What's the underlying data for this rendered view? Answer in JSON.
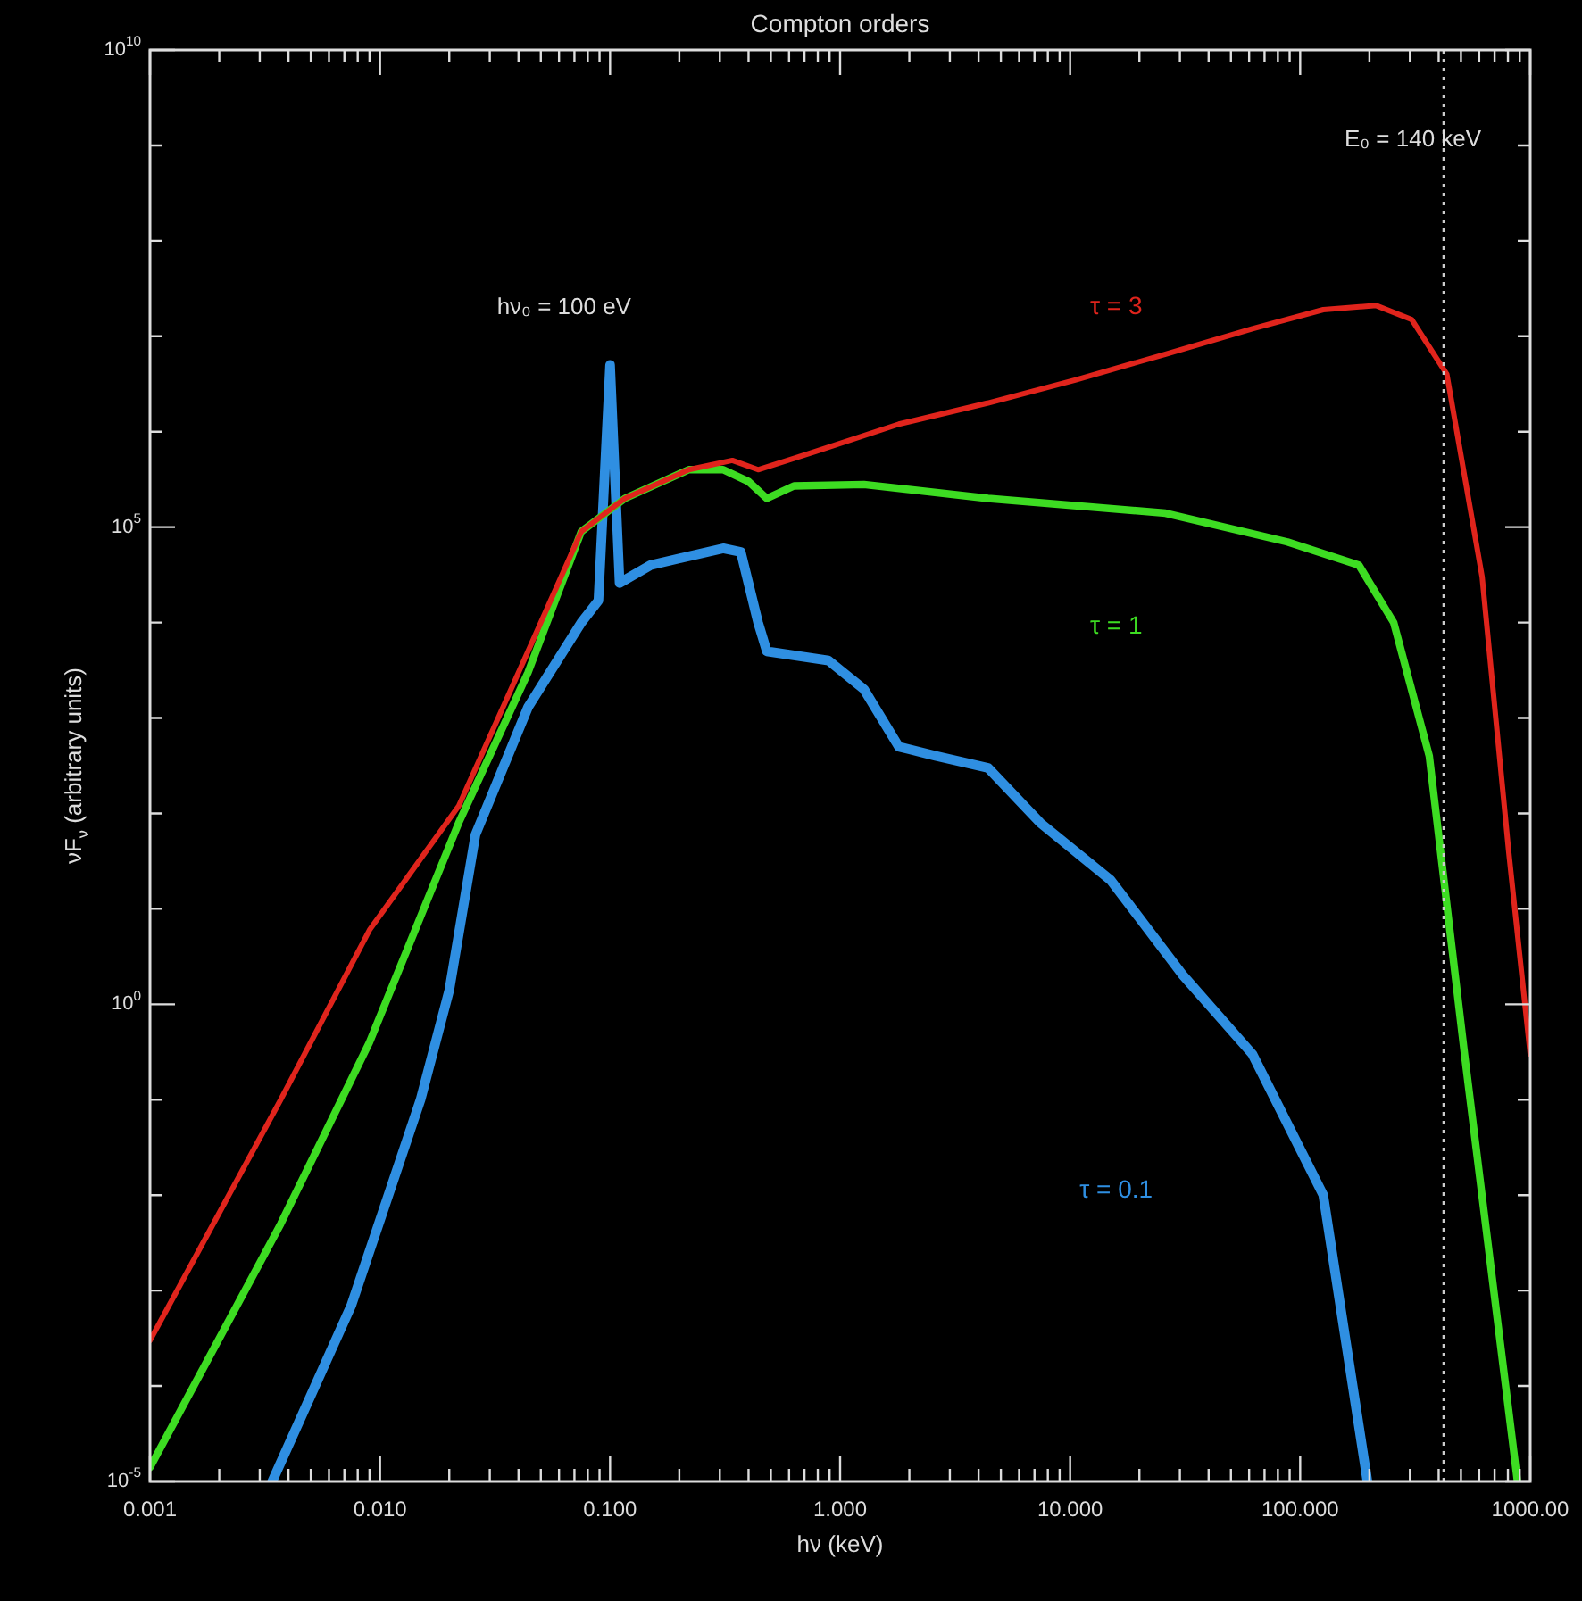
{
  "chart_data": {
    "type": "line",
    "title": "Compton orders",
    "xlabel": "hν (keV)",
    "ylabel": "νF$_{ν}$ (arbitrary units)",
    "log": "xy",
    "grid": false,
    "legend": false,
    "line_style": "solid",
    "marker": "none",
    "xlim": [
      0.001,
      1000
    ],
    "ylim": [
      1e-05,
      10000000000.0
    ],
    "xticks": [
      {
        "value": 0.001,
        "label": "0.001"
      },
      {
        "value": 0.002,
        "label": null
      },
      {
        "value": 0.003,
        "label": null
      },
      {
        "value": 0.004,
        "label": null
      },
      {
        "value": 0.005,
        "label": null
      },
      {
        "value": 0.006,
        "label": null
      },
      {
        "value": 0.007,
        "label": null
      },
      {
        "value": 0.008,
        "label": null
      },
      {
        "value": 0.009,
        "label": null
      },
      {
        "value": 0.01,
        "label": "0.010"
      },
      {
        "value": 0.02,
        "label": null
      },
      {
        "value": 0.03,
        "label": null
      },
      {
        "value": 0.04,
        "label": null
      },
      {
        "value": 0.05,
        "label": null
      },
      {
        "value": 0.06,
        "label": null
      },
      {
        "value": 0.07,
        "label": null
      },
      {
        "value": 0.08,
        "label": null
      },
      {
        "value": 0.09,
        "label": null
      },
      {
        "value": 0.1,
        "label": "0.100"
      },
      {
        "value": 0.2,
        "label": null
      },
      {
        "value": 0.3,
        "label": null
      },
      {
        "value": 0.4,
        "label": null
      },
      {
        "value": 0.5,
        "label": null
      },
      {
        "value": 0.6,
        "label": null
      },
      {
        "value": 0.7,
        "label": null
      },
      {
        "value": 0.8,
        "label": null
      },
      {
        "value": 0.9,
        "label": null
      },
      {
        "value": 1,
        "label": "1.000"
      },
      {
        "value": 2,
        "label": null
      },
      {
        "value": 3,
        "label": null
      },
      {
        "value": 4,
        "label": null
      },
      {
        "value": 5,
        "label": null
      },
      {
        "value": 6,
        "label": null
      },
      {
        "value": 7,
        "label": null
      },
      {
        "value": 8,
        "label": null
      },
      {
        "value": 9,
        "label": null
      },
      {
        "value": 10,
        "label": "10.000"
      },
      {
        "value": 20,
        "label": null
      },
      {
        "value": 30,
        "label": null
      },
      {
        "value": 40,
        "label": null
      },
      {
        "value": 50,
        "label": null
      },
      {
        "value": 60,
        "label": null
      },
      {
        "value": 70,
        "label": null
      },
      {
        "value": 80,
        "label": null
      },
      {
        "value": 90,
        "label": null
      },
      {
        "value": 100,
        "label": "100.000"
      },
      {
        "value": 200,
        "label": null
      },
      {
        "value": 300,
        "label": null
      },
      {
        "value": 400,
        "label": null
      },
      {
        "value": 500,
        "label": null
      },
      {
        "value": 600,
        "label": null
      },
      {
        "value": 700,
        "label": null
      },
      {
        "value": 800,
        "label": null
      },
      {
        "value": 900,
        "label": null
      },
      {
        "value": 1000,
        "label": "1000.00"
      }
    ],
    "yticks": [
      {
        "value": 1e-05,
        "label": "10$^{-5}$"
      },
      {
        "value": 0.0001,
        "label": null
      },
      {
        "value": 0.001,
        "label": null
      },
      {
        "value": 0.01,
        "label": null
      },
      {
        "value": 0.1,
        "label": null
      },
      {
        "value": 1,
        "label": "10$^{0}$"
      },
      {
        "value": 10,
        "label": null
      },
      {
        "value": 100,
        "label": null
      },
      {
        "value": 1000,
        "label": null
      },
      {
        "value": 10000.0,
        "label": null
      },
      {
        "value": 100000.0,
        "label": "10$^{5}$"
      },
      {
        "value": 1000000.0,
        "label": null
      },
      {
        "value": 10000000.0,
        "label": null
      },
      {
        "value": 100000000.0,
        "label": null
      },
      {
        "value": 1000000000.0,
        "label": null
      },
      {
        "value": 10000000000.0,
        "label": "10$^{10}$"
      }
    ],
    "series": [
      {
        "name": "τ = 3",
        "color": "#e0241c",
        "x": [
          0.001,
          0.0037,
          0.009,
          0.022,
          0.044,
          0.075,
          0.116,
          0.22,
          0.34,
          0.44,
          0.75,
          1.8,
          4.4,
          10.6,
          26,
          62,
          126,
          214,
          305,
          434,
          618,
          806,
          1000
        ],
        "values": [
          0.0003,
          0.1,
          6,
          120,
          5000,
          90000.0,
          200000.0,
          400000.0,
          500000.0,
          400000.0,
          600000.0,
          1200000.0,
          2000000.0,
          3500000.0,
          6500000.0,
          12000000.0,
          19000000.0,
          21000000.0,
          15000000.0,
          4000000.0,
          30000.0,
          40,
          0.3
        ]
      },
      {
        "name": "τ = 1",
        "color": "#3ddc22",
        "x": [
          0.001,
          0.0037,
          0.009,
          0.022,
          0.044,
          0.075,
          0.116,
          0.22,
          0.31,
          0.4,
          0.48,
          0.63,
          1.27,
          4.4,
          26,
          88,
          180,
          255,
          364,
          518,
          680,
          880
        ],
        "values": [
          1.4e-05,
          0.005,
          0.4,
          80,
          3000,
          90000.0,
          200000.0,
          400000.0,
          400000.0,
          300000.0,
          200000.0,
          270000.0,
          280000.0,
          200000.0,
          140000.0,
          70000.0,
          40000.0,
          10000.0,
          400,
          0.3,
          0.0015,
          1e-05
        ]
      },
      {
        "name": "τ = 0.1",
        "color": "#2f8fe2",
        "x": [
          0.0034,
          0.0075,
          0.015,
          0.02,
          0.026,
          0.044,
          0.075,
          0.089,
          0.1,
          0.11,
          0.15,
          0.31,
          0.37,
          0.44,
          0.48,
          0.89,
          1.27,
          1.8,
          2.6,
          4.4,
          7.4,
          15,
          31,
          62,
          126,
          196
        ],
        "values": [
          1e-05,
          0.0007,
          0.1,
          1.4,
          60,
          1300,
          10000.0,
          17000.0,
          5000000.0,
          26000.0,
          40000.0,
          60000.0,
          55000.0,
          10000.0,
          5000,
          4000,
          2000,
          500,
          400,
          300,
          80,
          20,
          2,
          0.3,
          0.01,
          1e-05
        ]
      }
    ],
    "ref_lines": [
      {
        "axis": "x",
        "value": 420,
        "color": "#cccccc",
        "line_style": "dotted"
      }
    ],
    "annotations": [
      "hν₀ = 100 eV",
      "E₀ = 140 keV"
    ]
  }
}
